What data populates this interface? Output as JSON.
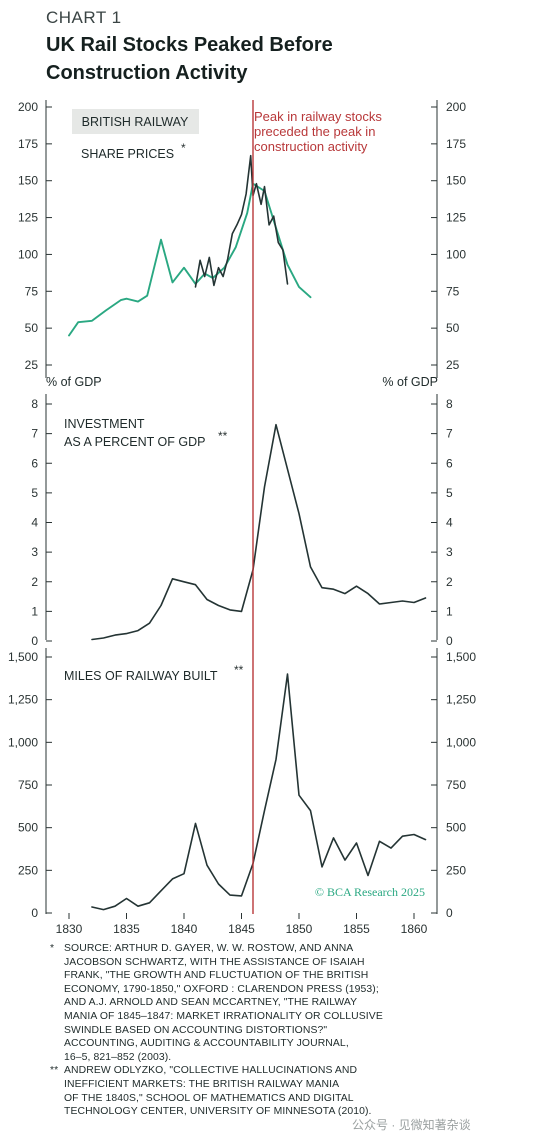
{
  "header": {
    "kicker": "CHART 1",
    "title_line1": "UK Rail Stocks Peaked Before",
    "title_line2": "Construction Activity"
  },
  "colors": {
    "green": "#2aa882",
    "dark": "#243434",
    "red": "#b8383a",
    "box": "#e6e8e6",
    "axis": "#2a3333"
  },
  "chart_data": [
    {
      "type": "line",
      "panel": "top",
      "series": [
        {
          "name": "BRITISH RAILWAY",
          "color": "green",
          "x": [
            1830,
            1830.8,
            1832,
            1833.2,
            1834.5,
            1835,
            1836,
            1836.8,
            1838,
            1839,
            1840,
            1841,
            1841.8,
            1842.5,
            1843.5,
            1844.5,
            1845.5,
            1846,
            1847,
            1848,
            1849,
            1850,
            1851
          ],
          "y": [
            45,
            54,
            55,
            62,
            69,
            70,
            68,
            72,
            110,
            81,
            91,
            80,
            87,
            84,
            91,
            105,
            128,
            148,
            143,
            118,
            93,
            78,
            71
          ]
        },
        {
          "name": "SHARE PRICES",
          "color": "dark",
          "x": [
            1841.0,
            1841.4,
            1841.8,
            1842.2,
            1842.6,
            1843.0,
            1843.4,
            1843.8,
            1844.2,
            1844.6,
            1845.0,
            1845.4,
            1845.8,
            1846.0,
            1846.3,
            1846.7,
            1847.0,
            1847.4,
            1847.8,
            1848.2,
            1848.6,
            1849.0
          ],
          "y": [
            78,
            96,
            85,
            98,
            79,
            91,
            85,
            97,
            114,
            120,
            127,
            141,
            167,
            140,
            148,
            134,
            146,
            120,
            126,
            108,
            103,
            80
          ]
        }
      ],
      "ylim": [
        20,
        205
      ],
      "yticks": [
        25,
        50,
        75,
        100,
        125,
        150,
        175,
        200
      ],
      "legend_box": "BRITISH RAILWAY",
      "legend_text": "SHARE PRICES",
      "legend_sup": "*",
      "annotation": [
        "Peak in railway stocks",
        "preceded the peak in",
        "construction activity"
      ],
      "unit_left": "% of GDP",
      "unit_right": "% of GDP"
    },
    {
      "type": "line",
      "panel": "middle",
      "title_lines": [
        "INVESTMENT",
        "AS A PERCENT OF GDP"
      ],
      "title_sup": "**",
      "series": [
        {
          "color": "dark",
          "x": [
            1832,
            1833,
            1834,
            1835,
            1836,
            1837,
            1838,
            1839,
            1840,
            1841,
            1842,
            1843,
            1844,
            1845,
            1846,
            1847,
            1848,
            1849,
            1850,
            1851,
            1852,
            1853,
            1854,
            1855,
            1856,
            1857,
            1858,
            1859,
            1860,
            1861
          ],
          "y": [
            0.05,
            0.1,
            0.2,
            0.25,
            0.35,
            0.6,
            1.2,
            2.1,
            2.0,
            1.9,
            1.4,
            1.2,
            1.05,
            1.0,
            2.4,
            5.2,
            7.3,
            5.8,
            4.3,
            2.5,
            1.8,
            1.75,
            1.6,
            1.85,
            1.6,
            1.25,
            1.3,
            1.35,
            1.3,
            1.45
          ]
        }
      ],
      "ylim": [
        0,
        8
      ],
      "yticks": [
        0,
        1,
        2,
        3,
        4,
        5,
        6,
        7,
        8
      ]
    },
    {
      "type": "line",
      "panel": "bottom",
      "title_lines": [
        "MILES OF RAILWAY BUILT"
      ],
      "title_sup": "**",
      "series": [
        {
          "color": "dark",
          "x": [
            1832,
            1833,
            1834,
            1835,
            1836,
            1837,
            1838,
            1839,
            1840,
            1841,
            1842,
            1843,
            1844,
            1845,
            1846,
            1847,
            1848,
            1849,
            1850,
            1851,
            1852,
            1853,
            1854,
            1855,
            1856,
            1857,
            1858,
            1859,
            1860,
            1861
          ],
          "y": [
            35,
            20,
            40,
            85,
            40,
            60,
            130,
            200,
            230,
            525,
            280,
            170,
            105,
            100,
            290,
            600,
            900,
            1400,
            690,
            600,
            270,
            440,
            310,
            410,
            220,
            420,
            380,
            450,
            460,
            430
          ]
        }
      ],
      "ylim": [
        0,
        1500
      ],
      "yticks": [
        0,
        250,
        500,
        750,
        1000,
        1250,
        1500
      ],
      "ytick_labels": [
        "0",
        "250",
        "500",
        "750",
        "1,000",
        "1,250",
        "1,500"
      ],
      "credit": "© BCA Research 2025"
    }
  ],
  "x_axis": {
    "xlim": [
      1828,
      1862
    ],
    "ticks": [
      1830,
      1835,
      1840,
      1845,
      1850,
      1855,
      1860
    ],
    "marker_year": 1846
  },
  "footnotes": [
    {
      "mark": "*",
      "lines": [
        "SOURCE: ARTHUR D. GAYER, W. W. ROSTOW, AND ANNA",
        "JACOBSON SCHWARTZ, WITH THE ASSISTANCE OF ISAIAH",
        "FRANK, \"THE GROWTH AND FLUCTUATION OF THE BRITISH",
        "ECONOMY, 1790-1850,\" OXFORD : CLARENDON PRESS (1953);",
        "AND A.J. ARNOLD AND SEAN MCCARTNEY, \"THE RAILWAY",
        "MANIA OF 1845–1847: MARKET IRRATIONALITY OR COLLUSIVE",
        "SWINDLE BASED ON ACCOUNTING DISTORTIONS?\"",
        "ACCOUNTING, AUDITING & ACCOUNTABILITY JOURNAL,",
        "16–5, 821–852 (2003)."
      ]
    },
    {
      "mark": "**",
      "lines": [
        "ANDREW ODLYZKO, \"COLLECTIVE HALLUCINATIONS AND",
        "INEFFICIENT MARKETS: THE BRITISH RAILWAY MANIA",
        "OF THE 1840S,\" SCHOOL OF MATHEMATICS AND DIGITAL",
        "TECHNOLOGY CENTER, UNIVERSITY OF MINNESOTA (2010)."
      ]
    }
  ],
  "watermark": "公众号 · 见微知著杂谈"
}
